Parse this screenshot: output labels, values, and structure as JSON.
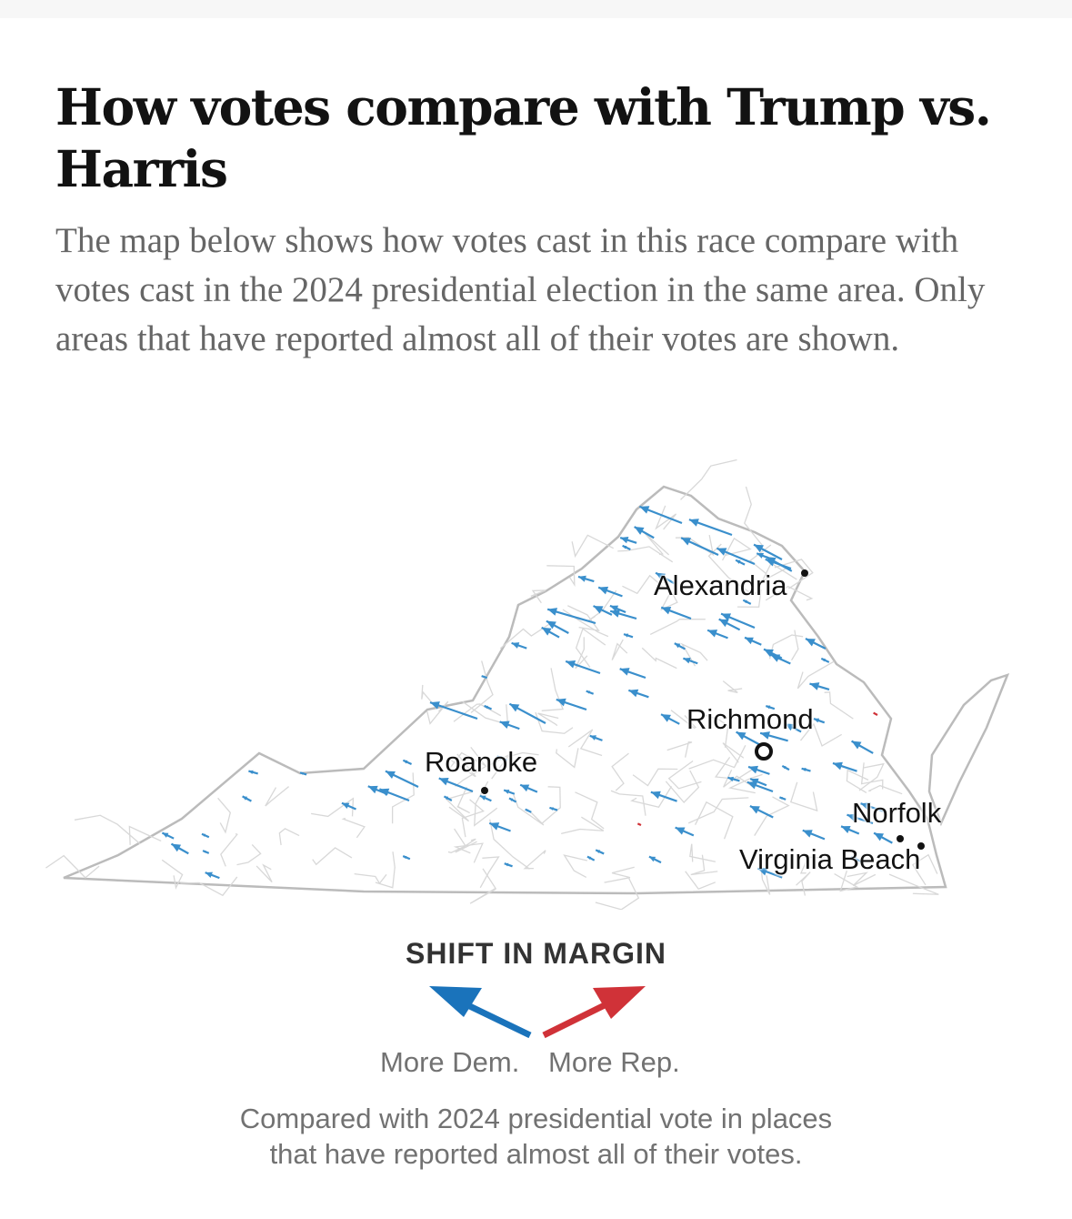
{
  "header": {
    "title": "How votes compare with Trump vs. Harris",
    "description": "The map below shows how votes cast in this race compare with votes cast in the 2024 presidential election in the same area. Only areas that have reported almost all of their votes are shown."
  },
  "map": {
    "cities": [
      "Alexandria",
      "Richmond",
      "Roanoke",
      "Norfolk",
      "Virginia Beach"
    ]
  },
  "legend": {
    "title": "SHIFT IN MARGIN",
    "dem_label": "More Dem.",
    "rep_label": "More Rep.",
    "dem_color": "#1a73bb",
    "rep_color": "#d03238",
    "note_line1": "Compared with 2024 presidential vote in places",
    "note_line2": "that have reported almost all of their votes."
  }
}
